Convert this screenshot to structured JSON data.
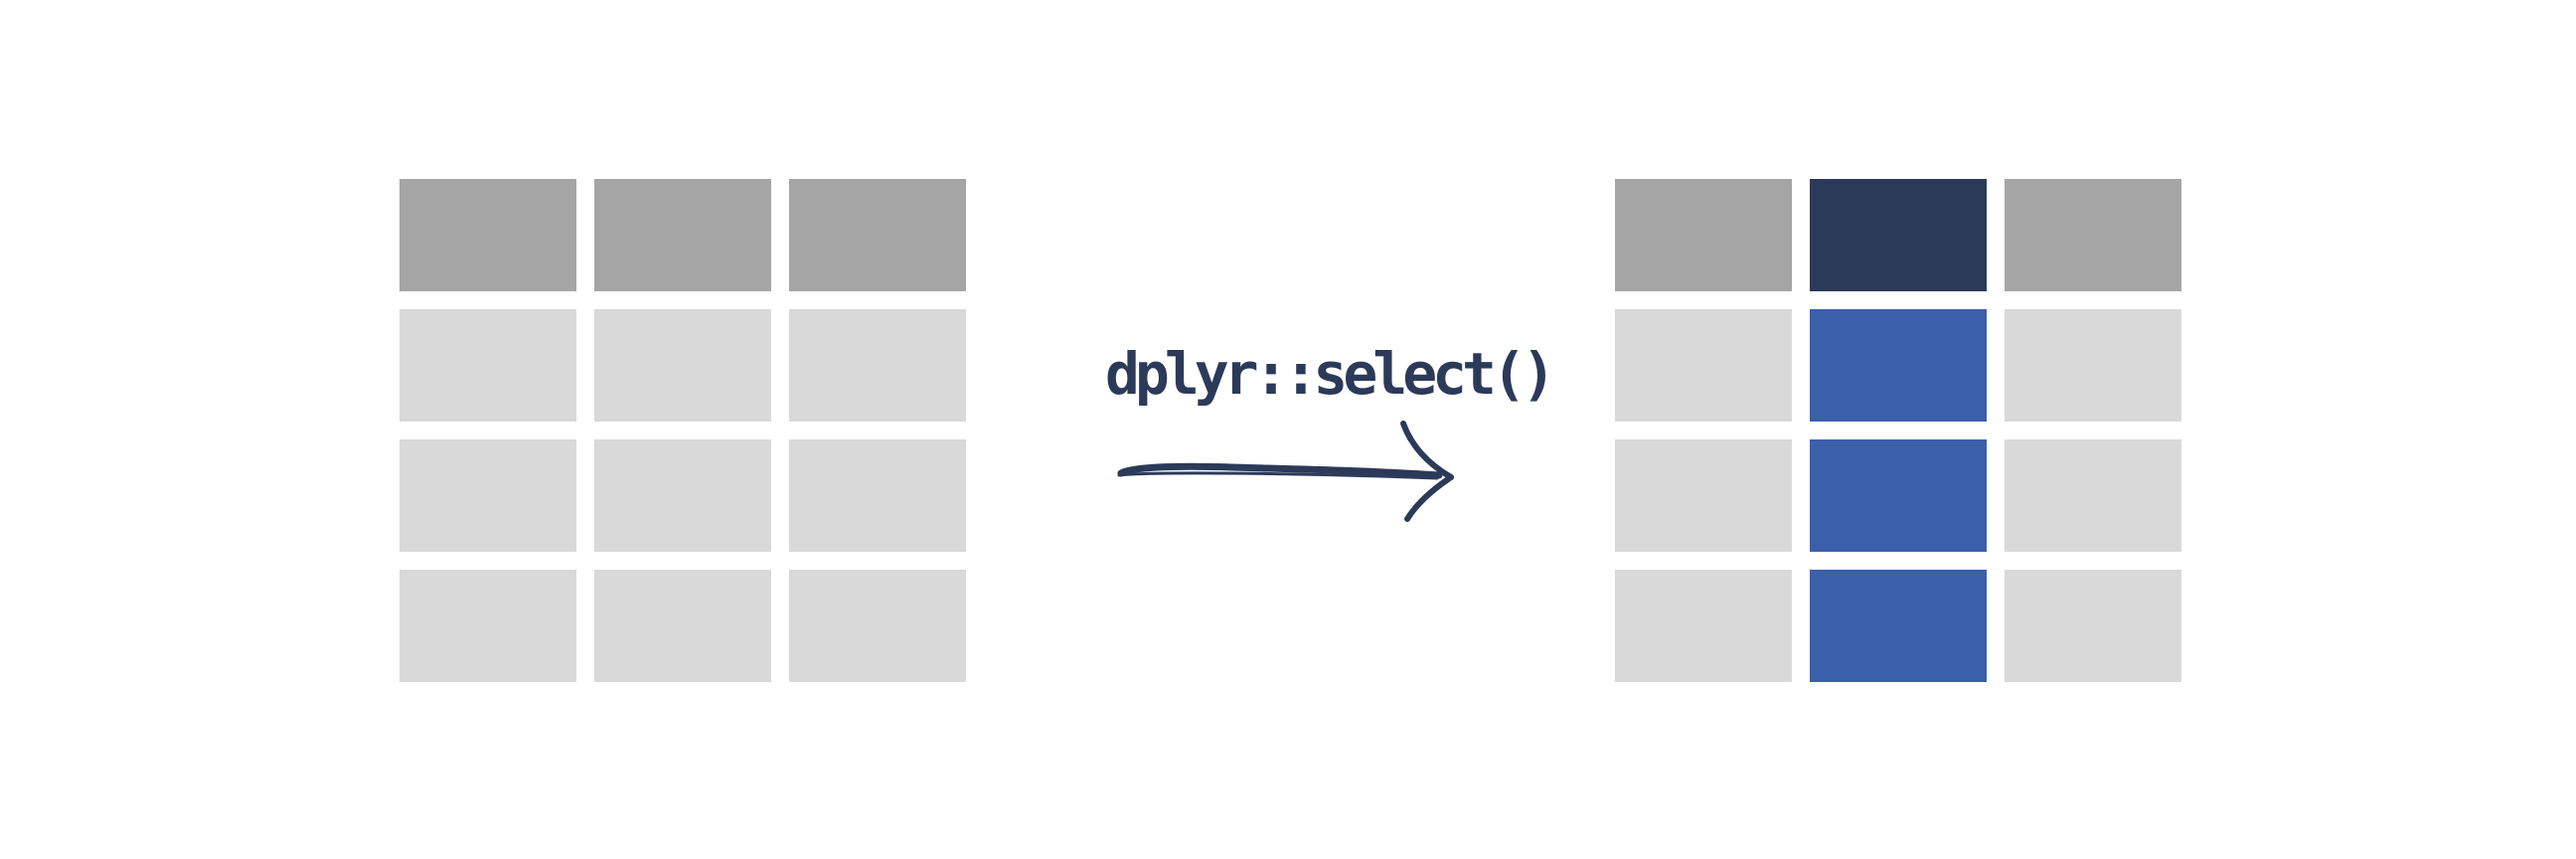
{
  "operation": {
    "label": "dplyr::select()"
  },
  "before_table": {
    "columns": 3,
    "rows": 4,
    "header_color": "#a5a5a5",
    "body_color": "#d9d9d9"
  },
  "after_table": {
    "columns": 3,
    "rows": 4,
    "selected_column": 2,
    "header_color": "#a5a5a5",
    "body_color": "#d9d9d9",
    "selected_header_color": "#2c3a59",
    "selected_body_color": "#3b5fab"
  },
  "arrow_color": "#2c3a59"
}
